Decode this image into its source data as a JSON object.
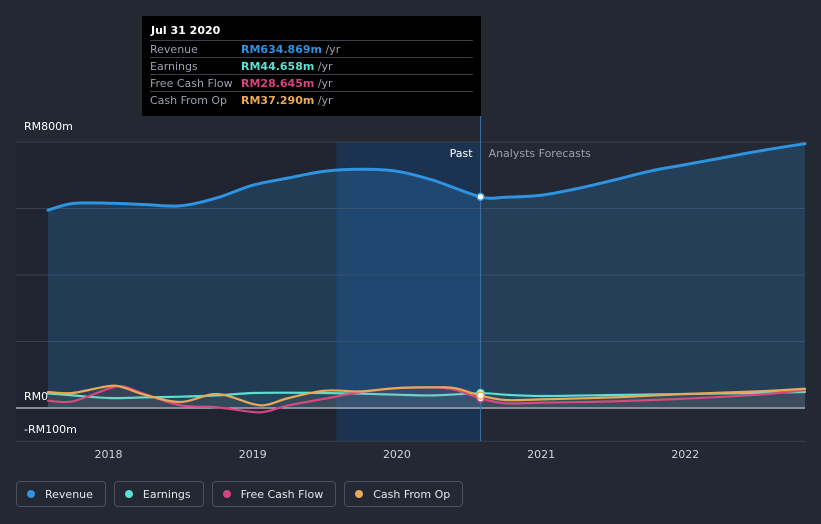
{
  "chart_data": {
    "type": "area",
    "title": "",
    "xlabel": "",
    "ylabel": "",
    "ylim": [
      -100,
      800
    ],
    "xlim": [
      2017.58,
      2022.83
    ],
    "y_axis_labels": [
      "RM800m",
      "RM0",
      "-RM100m"
    ],
    "y_axis_label_values": [
      800,
      0,
      -100
    ],
    "x_ticks": [
      2018,
      2019,
      2020,
      2021,
      2022
    ],
    "x_tick_labels": [
      "2018",
      "2019",
      "2020",
      "2021",
      "2022"
    ],
    "divider": {
      "x": 2020.58,
      "past_label": "Past",
      "forecast_label": "Analysts Forecasts"
    },
    "highlight_range": [
      2019.58,
      2020.58
    ],
    "series": [
      {
        "name": "Revenue",
        "color": "#2e93e0",
        "area": true,
        "x": [
          2017.58,
          2017.75,
          2018.0,
          2018.25,
          2018.5,
          2018.75,
          2019.0,
          2019.25,
          2019.5,
          2019.75,
          2020.0,
          2020.25,
          2020.58,
          2020.75,
          2021.0,
          2021.25,
          2021.5,
          2021.75,
          2022.0,
          2022.25,
          2022.5,
          2022.83
        ],
        "values": [
          595,
          615,
          616,
          612,
          608,
          632,
          670,
          692,
          712,
          718,
          712,
          685,
          635,
          634,
          640,
          660,
          685,
          712,
          732,
          752,
          772,
          795
        ]
      },
      {
        "name": "Earnings",
        "color": "#5ce0d2",
        "area": false,
        "x": [
          2017.58,
          2017.75,
          2018.0,
          2018.25,
          2018.5,
          2018.75,
          2019.0,
          2019.25,
          2019.5,
          2019.75,
          2020.0,
          2020.25,
          2020.58,
          2020.75,
          2021.0,
          2021.5,
          2022.0,
          2022.5,
          2022.83
        ],
        "values": [
          44,
          38,
          30,
          32,
          34,
          38,
          45,
          46,
          45,
          43,
          40,
          38,
          44.658,
          40,
          36,
          39,
          42,
          45,
          48
        ]
      },
      {
        "name": "Free Cash Flow",
        "color": "#d6447e",
        "area": false,
        "x": [
          2017.58,
          2017.75,
          2018.0,
          2018.1,
          2018.25,
          2018.5,
          2018.75,
          2019.0,
          2019.1,
          2019.25,
          2019.5,
          2019.75,
          2020.0,
          2020.25,
          2020.4,
          2020.58,
          2020.75,
          2021.0,
          2021.5,
          2022.0,
          2022.5,
          2022.83
        ],
        "values": [
          22,
          20,
          58,
          65,
          42,
          8,
          2,
          -12,
          -10,
          8,
          28,
          48,
          60,
          62,
          55,
          28.645,
          14,
          16,
          20,
          28,
          40,
          54
        ]
      },
      {
        "name": "Cash From Op",
        "color": "#e8a857",
        "area": false,
        "x": [
          2017.58,
          2017.75,
          2018.0,
          2018.1,
          2018.25,
          2018.5,
          2018.75,
          2019.0,
          2019.1,
          2019.25,
          2019.5,
          2019.75,
          2020.0,
          2020.25,
          2020.4,
          2020.58,
          2020.75,
          2021.0,
          2021.5,
          2022.0,
          2022.5,
          2022.83
        ],
        "values": [
          48,
          45,
          66,
          62,
          40,
          18,
          42,
          12,
          10,
          30,
          52,
          50,
          60,
          62,
          60,
          37.29,
          24,
          26,
          32,
          42,
          50,
          58
        ]
      }
    ]
  },
  "tooltip": {
    "date": "Jul 31 2020",
    "unit": " /yr",
    "rows": [
      {
        "label": "Revenue",
        "value": "RM634.869m",
        "color": "#2e93e0"
      },
      {
        "label": "Earnings",
        "value": "RM44.658m",
        "color": "#5ce0d2"
      },
      {
        "label": "Free Cash Flow",
        "value": "RM28.645m",
        "color": "#d6447e"
      },
      {
        "label": "Cash From Op",
        "value": "RM37.290m",
        "color": "#e8a857"
      }
    ]
  },
  "legend": [
    {
      "label": "Revenue",
      "color": "#2e93e0"
    },
    {
      "label": "Earnings",
      "color": "#5ce0d2"
    },
    {
      "label": "Free Cash Flow",
      "color": "#d6447e"
    },
    {
      "label": "Cash From Op",
      "color": "#e8a857"
    }
  ]
}
